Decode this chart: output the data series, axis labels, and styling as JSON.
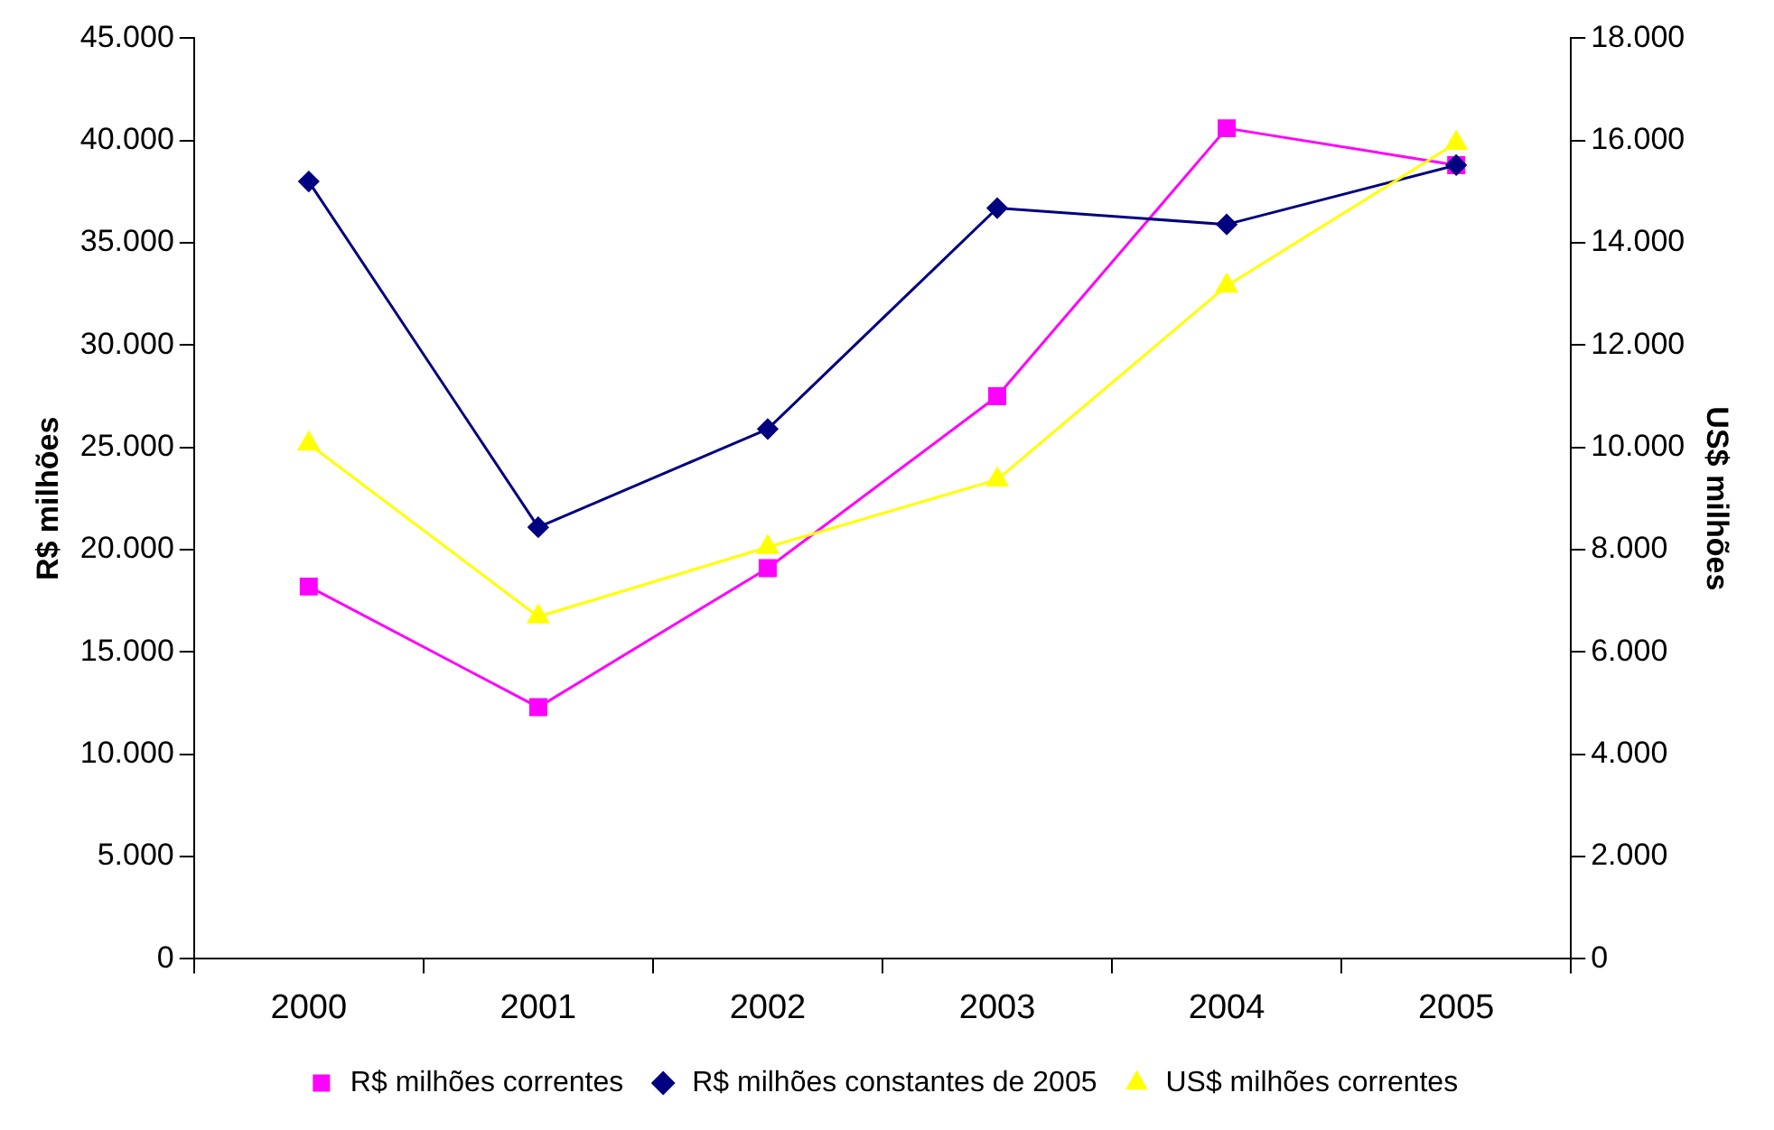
{
  "chart_data": {
    "type": "line",
    "categories": [
      "2000",
      "2001",
      "2002",
      "2003",
      "2004",
      "2005"
    ],
    "ylabel": "R$ milhões",
    "y2label": "US$ milhões",
    "series": [
      {
        "name": "R$ milhões correntes",
        "color": "#ff00ff",
        "marker": "square",
        "values": [
          18200,
          12300,
          19100,
          27500,
          40600,
          38800
        ]
      },
      {
        "name": "R$ milhões constantes de 2005",
        "color": "#000080",
        "marker": "diamond",
        "values": [
          38000,
          21100,
          25900,
          36700,
          35900,
          38800
        ]
      },
      {
        "name": "US$ milhões correntes",
        "color": "#ffff00",
        "marker": "triangle",
        "axis": "y2",
        "values": [
          10070,
          6690,
          8050,
          9370,
          13160,
          15950
        ]
      }
    ],
    "ylim": [
      0,
      45000
    ],
    "yticks": [
      {
        "value": 0,
        "label": "0"
      },
      {
        "value": 5000,
        "label": "5.000"
      },
      {
        "value": 10000,
        "label": "10.000"
      },
      {
        "value": 15000,
        "label": "15.000"
      },
      {
        "value": 20000,
        "label": "20.000"
      },
      {
        "value": 25000,
        "label": "25.000"
      },
      {
        "value": 30000,
        "label": "30.000"
      },
      {
        "value": 35000,
        "label": "35.000"
      },
      {
        "value": 40000,
        "label": "40.000"
      },
      {
        "value": 45000,
        "label": "45.000"
      }
    ],
    "y2lim": [
      0,
      18000
    ],
    "y2ticks": [
      {
        "value": 0,
        "label": "0"
      },
      {
        "value": 2000,
        "label": "2.000"
      },
      {
        "value": 4000,
        "label": "4.000"
      },
      {
        "value": 6000,
        "label": "6.000"
      },
      {
        "value": 8000,
        "label": "8.000"
      },
      {
        "value": 10000,
        "label": "10.000"
      },
      {
        "value": 12000,
        "label": "12.000"
      },
      {
        "value": 14000,
        "label": "14.000"
      },
      {
        "value": 16000,
        "label": "16.000"
      },
      {
        "value": 18000,
        "label": "18.000"
      }
    ],
    "grid": false,
    "legend": "bottom"
  }
}
